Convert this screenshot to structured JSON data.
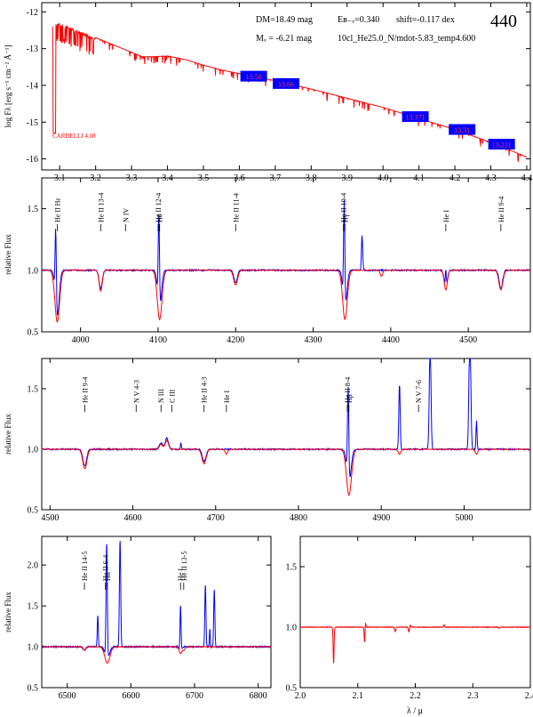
{
  "figure": {
    "id_number": "440",
    "info": {
      "dm": "DM=18.49 mag",
      "mv": "Mᵥ = -6.21 mag",
      "ebv": "Eʙ₋ᵥ=0.340",
      "shift": "shift=-0.117 dex",
      "model": "10cl_He25.0_N/mdot-5.83_temp4.600"
    }
  },
  "colors": {
    "model": "#ff0000",
    "observed": "#0000ff",
    "photometry_box": "#0000ff"
  },
  "chart_data": [
    {
      "id": "sed",
      "type": "line",
      "title": "",
      "xlabel": "",
      "ylabel": "log Fλ [erg s⁻¹ cm⁻² Å⁻¹]",
      "xlim": [
        3.05,
        4.41
      ],
      "ylim": [
        -16.3,
        -11.75
      ],
      "xticks": [
        3.1,
        3.2,
        3.3,
        3.4,
        3.5,
        3.6,
        3.7,
        3.8,
        3.9,
        4.0,
        4.1,
        4.2,
        4.3,
        4.4
      ],
      "xtick_labels": [
        "3.1",
        "3.2",
        "3.3",
        "3.4",
        "3.5",
        "3.6",
        "3.7",
        "3.8",
        "3.9",
        "4.0",
        "4.1",
        "4.2",
        "4.3",
        "4.4"
      ],
      "yticks": [
        -16,
        -15,
        -14,
        -13,
        -12
      ],
      "ytick_labels": [
        "-16",
        "-15",
        "-14",
        "-13",
        "-12"
      ],
      "reddening_label": "CARDELLI 4.08",
      "model_continuum": {
        "x": [
          3.08,
          3.1,
          3.12,
          3.15,
          3.2,
          3.25,
          3.3,
          3.33,
          3.36,
          3.4,
          3.45,
          3.5,
          3.55,
          3.6,
          3.65,
          3.7,
          3.8,
          3.9,
          4.0,
          4.1,
          4.2,
          4.3,
          4.4
        ],
        "y": [
          -12.35,
          -12.3,
          -12.38,
          -12.5,
          -12.7,
          -12.9,
          -13.1,
          -13.22,
          -13.22,
          -13.2,
          -13.3,
          -13.45,
          -13.58,
          -13.68,
          -13.78,
          -13.87,
          -14.1,
          -14.35,
          -14.6,
          -14.9,
          -15.2,
          -15.55,
          -15.95
        ]
      },
      "photometry": [
        {
          "x": 3.64,
          "y": -13.75,
          "label": "13.58"
        },
        {
          "x": 3.73,
          "y": -13.95,
          "label": "13.66"
        },
        {
          "x": 4.09,
          "y": -14.85,
          "label": "13.371"
        },
        {
          "x": 4.22,
          "y": -15.2,
          "label": "13.31"
        },
        {
          "x": 4.33,
          "y": -15.6,
          "label": "13.211"
        }
      ]
    },
    {
      "id": "panel-blue",
      "type": "line",
      "xlabel": "",
      "ylabel": "relative Flux",
      "xlim": [
        3950,
        4580
      ],
      "ylim": [
        0.5,
        1.75
      ],
      "xticks": [
        4000,
        4100,
        4200,
        4300,
        4400,
        4500
      ],
      "xtick_labels": [
        "4000",
        "4100",
        "4200",
        "4300",
        "4400",
        "4500"
      ],
      "yticks": [
        0.5,
        1.0,
        1.5
      ],
      "ytick_labels": [
        "0.5",
        "1.0",
        "1.5"
      ],
      "line_ids": [
        {
          "x": 3970,
          "label": "He II Hε"
        },
        {
          "x": 4026,
          "label": "He II 13-4"
        },
        {
          "x": 4058,
          "label": "N IV"
        },
        {
          "x": 4100,
          "label": "He II 12-4"
        },
        {
          "x": 4102,
          "label": "Hδ"
        },
        {
          "x": 4200,
          "label": "He II 11-4"
        },
        {
          "x": 4339,
          "label": "He II 10-4"
        },
        {
          "x": 4341,
          "label": "Hγ"
        },
        {
          "x": 4471,
          "label": "He I"
        },
        {
          "x": 4542,
          "label": "He II 9-4"
        }
      ],
      "model_features": [
        {
          "x": 3970,
          "depth": -0.42,
          "width": 3
        },
        {
          "x": 4026,
          "depth": -0.17,
          "width": 2
        },
        {
          "x": 4102,
          "depth": -0.4,
          "width": 3
        },
        {
          "x": 4200,
          "depth": -0.12,
          "width": 2.5
        },
        {
          "x": 4341,
          "depth": -0.4,
          "width": 3
        },
        {
          "x": 4388,
          "depth": -0.05,
          "width": 1.5
        },
        {
          "x": 4471,
          "depth": -0.16,
          "width": 2
        },
        {
          "x": 4542,
          "depth": -0.16,
          "width": 2.5
        }
      ],
      "observed_features": [
        {
          "x": 3968,
          "depth": 0.62,
          "width": 0.8
        },
        {
          "x": 3970,
          "depth": -0.38,
          "width": 2.5
        },
        {
          "x": 4026,
          "depth": -0.15,
          "width": 2
        },
        {
          "x": 4101,
          "depth": 0.75,
          "width": 0.8
        },
        {
          "x": 4102,
          "depth": -0.3,
          "width": 2.5
        },
        {
          "x": 4200,
          "depth": -0.1,
          "width": 2.2
        },
        {
          "x": 4340,
          "depth": 0.85,
          "width": 0.8
        },
        {
          "x": 4341,
          "depth": -0.3,
          "width": 2.5
        },
        {
          "x": 4363,
          "depth": 0.28,
          "width": 0.8
        },
        {
          "x": 4471,
          "depth": 0.15,
          "width": 0.6
        },
        {
          "x": 4471,
          "depth": -0.14,
          "width": 2
        },
        {
          "x": 4542,
          "depth": -0.15,
          "width": 2.2
        }
      ]
    },
    {
      "id": "panel-green",
      "type": "line",
      "xlabel": "",
      "ylabel": "relative Flux",
      "xlim": [
        4490,
        5080
      ],
      "ylim": [
        0.5,
        1.75
      ],
      "xticks": [
        4500,
        4600,
        4700,
        4800,
        4900,
        5000
      ],
      "xtick_labels": [
        "4500",
        "4600",
        "4700",
        "4800",
        "4900",
        "5000"
      ],
      "yticks": [
        0.5,
        1.0,
        1.5
      ],
      "ytick_labels": [
        "0.5",
        "1.0",
        "1.5"
      ],
      "line_ids": [
        {
          "x": 4542,
          "label": "He II 9-4"
        },
        {
          "x": 4604,
          "label": "N V 4-3"
        },
        {
          "x": 4634,
          "label": "N III"
        },
        {
          "x": 4647,
          "label": "C III"
        },
        {
          "x": 4686,
          "label": "He II 4-3"
        },
        {
          "x": 4713,
          "label": "He I"
        },
        {
          "x": 4859,
          "label": "He II 8-4"
        },
        {
          "x": 4861,
          "label": "Hβ"
        },
        {
          "x": 4945,
          "label": "N V 7-6"
        }
      ],
      "model_features": [
        {
          "x": 4542,
          "depth": -0.16,
          "width": 2.5
        },
        {
          "x": 4634,
          "depth": 0.04,
          "width": 2
        },
        {
          "x": 4641,
          "depth": 0.07,
          "width": 2
        },
        {
          "x": 4686,
          "depth": -0.12,
          "width": 2.5
        },
        {
          "x": 4713,
          "depth": -0.04,
          "width": 1.5
        },
        {
          "x": 4861,
          "depth": -0.38,
          "width": 3
        },
        {
          "x": 4922,
          "depth": -0.04,
          "width": 1.5
        },
        {
          "x": 5015,
          "depth": -0.04,
          "width": 1.5
        }
      ],
      "observed_features": [
        {
          "x": 4542,
          "depth": -0.14,
          "width": 2.2
        },
        {
          "x": 4634,
          "depth": 0.05,
          "width": 2
        },
        {
          "x": 4641,
          "depth": 0.09,
          "width": 2
        },
        {
          "x": 4658,
          "depth": 0.05,
          "width": 0.6
        },
        {
          "x": 4686,
          "depth": -0.1,
          "width": 2.2
        },
        {
          "x": 4860,
          "depth": 0.78,
          "width": 0.8
        },
        {
          "x": 4861,
          "depth": -0.28,
          "width": 2.5
        },
        {
          "x": 4922,
          "depth": 0.55,
          "width": 0.8
        },
        {
          "x": 4959,
          "depth": 0.9,
          "width": 1.0
        },
        {
          "x": 5007,
          "depth": 1.0,
          "width": 1.1
        },
        {
          "x": 5015,
          "depth": 0.24,
          "width": 0.6
        }
      ]
    },
    {
      "id": "panel-red",
      "type": "line",
      "xlabel": "",
      "ylabel": "relative Flux",
      "xlim": [
        6460,
        6820
      ],
      "ylim": [
        0.5,
        2.35
      ],
      "xticks": [
        6500,
        6600,
        6700,
        6800
      ],
      "xtick_labels": [
        "6500",
        "6600",
        "6700",
        "6800"
      ],
      "yticks": [
        0.5,
        1.0,
        1.5,
        2.0
      ],
      "ytick_labels": [
        "0.5",
        "1.0",
        "1.5",
        "2.0"
      ],
      "line_ids": [
        {
          "x": 6527,
          "label": "He II 14-5"
        },
        {
          "x": 6560,
          "label": "He II 6-4"
        },
        {
          "x": 6563,
          "label": "Hα"
        },
        {
          "x": 6678,
          "label": "He I"
        },
        {
          "x": 6683,
          "label": "He II 13-5"
        }
      ],
      "model_features": [
        {
          "x": 6527,
          "depth": -0.04,
          "width": 2
        },
        {
          "x": 6563,
          "depth": -0.2,
          "width": 4
        },
        {
          "x": 6678,
          "depth": -0.08,
          "width": 2
        },
        {
          "x": 6683,
          "depth": -0.04,
          "width": 2
        }
      ],
      "observed_features": [
        {
          "x": 6527,
          "depth": -0.04,
          "width": 2
        },
        {
          "x": 6548,
          "depth": 0.38,
          "width": 0.8
        },
        {
          "x": 6562,
          "depth": 1.4,
          "width": 1.0
        },
        {
          "x": 6563,
          "depth": -0.14,
          "width": 3.5
        },
        {
          "x": 6583,
          "depth": 1.3,
          "width": 1.0
        },
        {
          "x": 6678,
          "depth": 0.55,
          "width": 0.8
        },
        {
          "x": 6678,
          "depth": -0.05,
          "width": 2
        },
        {
          "x": 6717,
          "depth": 0.75,
          "width": 0.9
        },
        {
          "x": 6724,
          "depth": 0.22,
          "width": 0.6
        },
        {
          "x": 6731,
          "depth": 0.7,
          "width": 0.9
        }
      ]
    },
    {
      "id": "panel-ir",
      "type": "line",
      "xlabel": "λ / μ",
      "ylabel": "",
      "xlim": [
        2.0,
        2.4
      ],
      "ylim": [
        0.5,
        1.75
      ],
      "xticks": [
        2.0,
        2.1,
        2.2,
        2.3,
        2.4
      ],
      "xtick_labels": [
        "2.0",
        "2.1",
        "2.2",
        "2.3",
        "2.4"
      ],
      "yticks": [
        0.5,
        1.0,
        1.5
      ],
      "ytick_labels": [
        "0.5",
        "1.0",
        "1.5"
      ],
      "model_features": [
        {
          "x": 2.058,
          "depth": -0.3,
          "width": 0.0008
        },
        {
          "x": 2.112,
          "depth": -0.15,
          "width": 0.0008
        },
        {
          "x": 2.113,
          "depth": 0.07,
          "width": 0.0008
        },
        {
          "x": 2.165,
          "depth": -0.04,
          "width": 0.001
        },
        {
          "x": 2.189,
          "depth": -0.04,
          "width": 0.001
        },
        {
          "x": 2.191,
          "depth": 0.02,
          "width": 0.0008
        },
        {
          "x": 2.25,
          "depth": 0.02,
          "width": 0.0008
        },
        {
          "x": 2.346,
          "depth": -0.01,
          "width": 0.001
        }
      ],
      "observed_features": []
    }
  ]
}
